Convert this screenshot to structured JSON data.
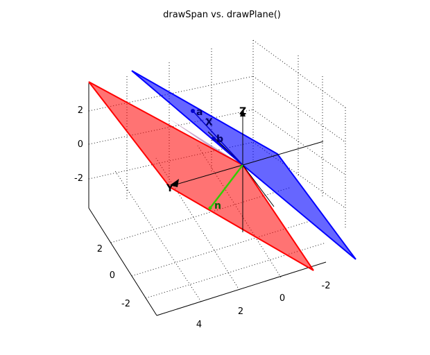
{
  "chart_data": {
    "type": "3d-plane",
    "title": "drawSpan vs. drawPlane()",
    "xlabel": "",
    "ylabel": "",
    "zlabel": "",
    "xlim": [
      -3,
      3
    ],
    "ylim": [
      -1,
      5
    ],
    "zlim": [
      -4,
      3
    ],
    "x_ticks": [
      "-2",
      "0",
      "2"
    ],
    "y_ticks": [
      "4",
      "2",
      "0",
      "-2"
    ],
    "z_ticks": [
      "2",
      "0",
      "-2"
    ],
    "grid": true,
    "colors": {
      "span_plane": "#ff0000",
      "drawplane_plane": "#0000ff",
      "normal": "#33cc00",
      "axes": "#000000"
    },
    "labels": {
      "a": "a",
      "b": "b",
      "x": "X",
      "z": "Z",
      "y": "Y",
      "n": "n"
    }
  }
}
